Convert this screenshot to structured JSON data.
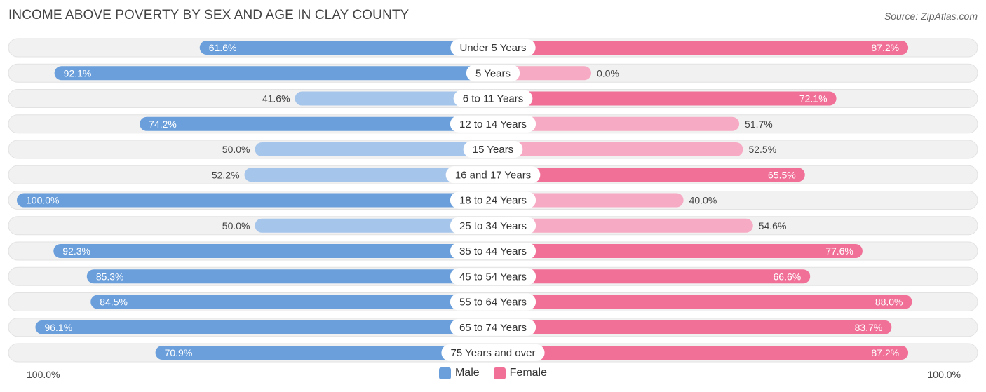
{
  "header": {
    "title": "INCOME ABOVE POVERTY BY SEX AND AGE IN CLAY COUNTY",
    "source": "Source: ZipAtlas.com"
  },
  "axis": {
    "left_label": "100.0%",
    "right_label": "100.0%"
  },
  "legend": {
    "male_label": "Male",
    "female_label": "Female"
  },
  "colors": {
    "male_strong": "#6a9fdc",
    "male_light": "#a6c5ea",
    "female_strong": "#f07098",
    "female_light": "#f7aac3",
    "row_bg": "#f1f1f1"
  },
  "chart_data": {
    "type": "bar",
    "orientation": "horizontal-diverging",
    "title": "INCOME ABOVE POVERTY BY SEX AND AGE IN CLAY COUNTY",
    "xlim": [
      0,
      100
    ],
    "categories": [
      "Under 5 Years",
      "5 Years",
      "6 to 11 Years",
      "12 to 14 Years",
      "15 Years",
      "16 and 17 Years",
      "18 to 24 Years",
      "25 to 34 Years",
      "35 to 44 Years",
      "45 to 54 Years",
      "55 to 64 Years",
      "65 to 74 Years",
      "75 Years and over"
    ],
    "series": [
      {
        "name": "Male",
        "values": [
          61.6,
          92.1,
          41.6,
          74.2,
          50.0,
          52.2,
          100.0,
          50.0,
          92.3,
          85.3,
          84.5,
          96.1,
          70.9
        ],
        "labels": [
          "61.6%",
          "92.1%",
          "41.6%",
          "74.2%",
          "50.0%",
          "52.2%",
          "100.0%",
          "50.0%",
          "92.3%",
          "85.3%",
          "84.5%",
          "96.1%",
          "70.9%"
        ]
      },
      {
        "name": "Female",
        "values": [
          87.2,
          0.0,
          72.1,
          51.7,
          52.5,
          65.5,
          40.0,
          54.6,
          77.6,
          66.6,
          88.0,
          83.7,
          87.2
        ],
        "labels": [
          "87.2%",
          "0.0%",
          "72.1%",
          "51.7%",
          "52.5%",
          "65.5%",
          "40.0%",
          "54.6%",
          "77.6%",
          "66.6%",
          "88.0%",
          "83.7%",
          "87.2%"
        ]
      }
    ]
  }
}
